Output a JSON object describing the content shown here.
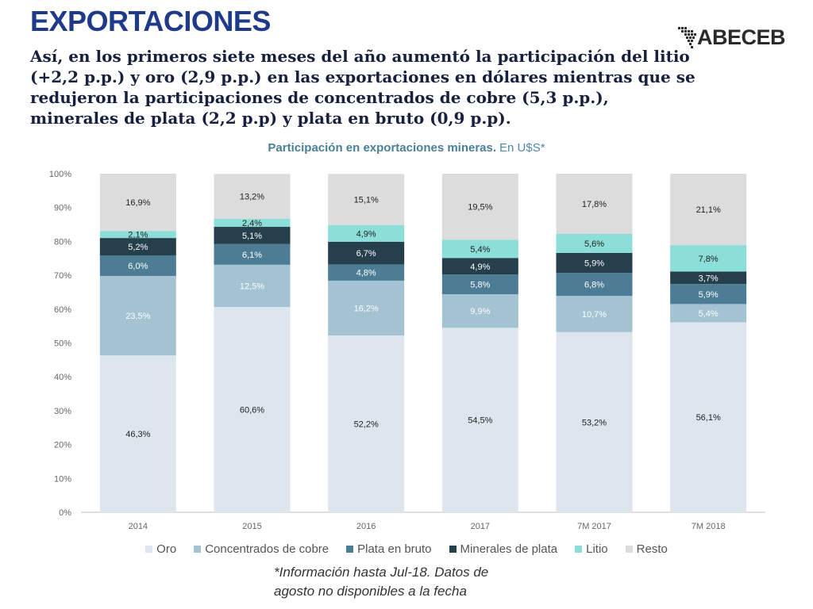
{
  "header": {
    "title": "EXPORTACIONES",
    "subtitle": "Así, en los primeros siete meses del año aumentó la participación del litio (+2,2 p.p.)  y oro (2,9 p.p.) en las exportaciones en dólares mientras que se redujeron la participaciones de concentrados de cobre (5,3 p.p.), minerales de plata (2,2 p.p) y plata en bruto (0,9 p.p)."
  },
  "logo": {
    "text": "ABECEB"
  },
  "chart_title": {
    "bold": "Participación en exportaciones mineras.",
    "thin": "En U$S*"
  },
  "footnote": {
    "line1": "*Información hasta Jul-18. Datos de",
    "line2": "agosto no disponibles a la fecha"
  },
  "chart_data": {
    "type": "bar",
    "stacked": true,
    "percent": true,
    "title": "Participación en exportaciones mineras. En U$S*",
    "categories": [
      "2014",
      "2015",
      "2016",
      "2017",
      "7M 2017",
      "7M 2018"
    ],
    "ylim": [
      0,
      100
    ],
    "yticks": [
      "0%",
      "10%",
      "20%",
      "30%",
      "40%",
      "50%",
      "60%",
      "70%",
      "80%",
      "90%",
      "100%"
    ],
    "grid": false,
    "legend_position": "bottom",
    "series": [
      {
        "name": "Oro",
        "color": "#dde6ef",
        "label_color": "#222222",
        "values": [
          46.3,
          60.6,
          52.2,
          54.5,
          53.2,
          56.1
        ],
        "labels": [
          "46,3%",
          "60,6%",
          "52,2%",
          "54,5%",
          "53,2%",
          "56,1%"
        ]
      },
      {
        "name": "Concentrados de cobre",
        "color": "#a3c2d2",
        "label_color": "#ffffff",
        "values": [
          23.5,
          12.5,
          16.2,
          9.9,
          10.7,
          5.4
        ],
        "labels": [
          "23,5%",
          "12,5%",
          "16,2%",
          "9,9%",
          "10,7%",
          "5,4%"
        ]
      },
      {
        "name": "Plata en bruto",
        "color": "#4d7d94",
        "label_color": "#ffffff",
        "values": [
          6.0,
          6.1,
          4.8,
          5.8,
          6.8,
          5.9
        ],
        "labels": [
          "6,0%",
          "6,1%",
          "4,8%",
          "5,8%",
          "6,8%",
          "5,9%"
        ]
      },
      {
        "name": "Minerales de plata",
        "color": "#263f4c",
        "label_color": "#ffffff",
        "values": [
          5.2,
          5.1,
          6.7,
          4.9,
          5.9,
          3.7
        ],
        "labels": [
          "5,2%",
          "5,1%",
          "6,7%",
          "4,9%",
          "5,9%",
          "3,7%"
        ]
      },
      {
        "name": "Litio",
        "color": "#8cded8",
        "label_color": "#222222",
        "values": [
          2.1,
          2.4,
          4.9,
          5.4,
          5.6,
          7.8
        ],
        "labels": [
          "2,1%",
          "2,4%",
          "4,9%",
          "5,4%",
          "5,6%",
          "7,8%"
        ]
      },
      {
        "name": "Resto",
        "color": "#dcdcdc",
        "label_color": "#222222",
        "values": [
          16.9,
          13.2,
          15.1,
          19.5,
          17.8,
          21.1
        ],
        "labels": [
          "16,9%",
          "13,2%",
          "15,1%",
          "19,5%",
          "17,8%",
          "21,1%"
        ]
      }
    ]
  }
}
